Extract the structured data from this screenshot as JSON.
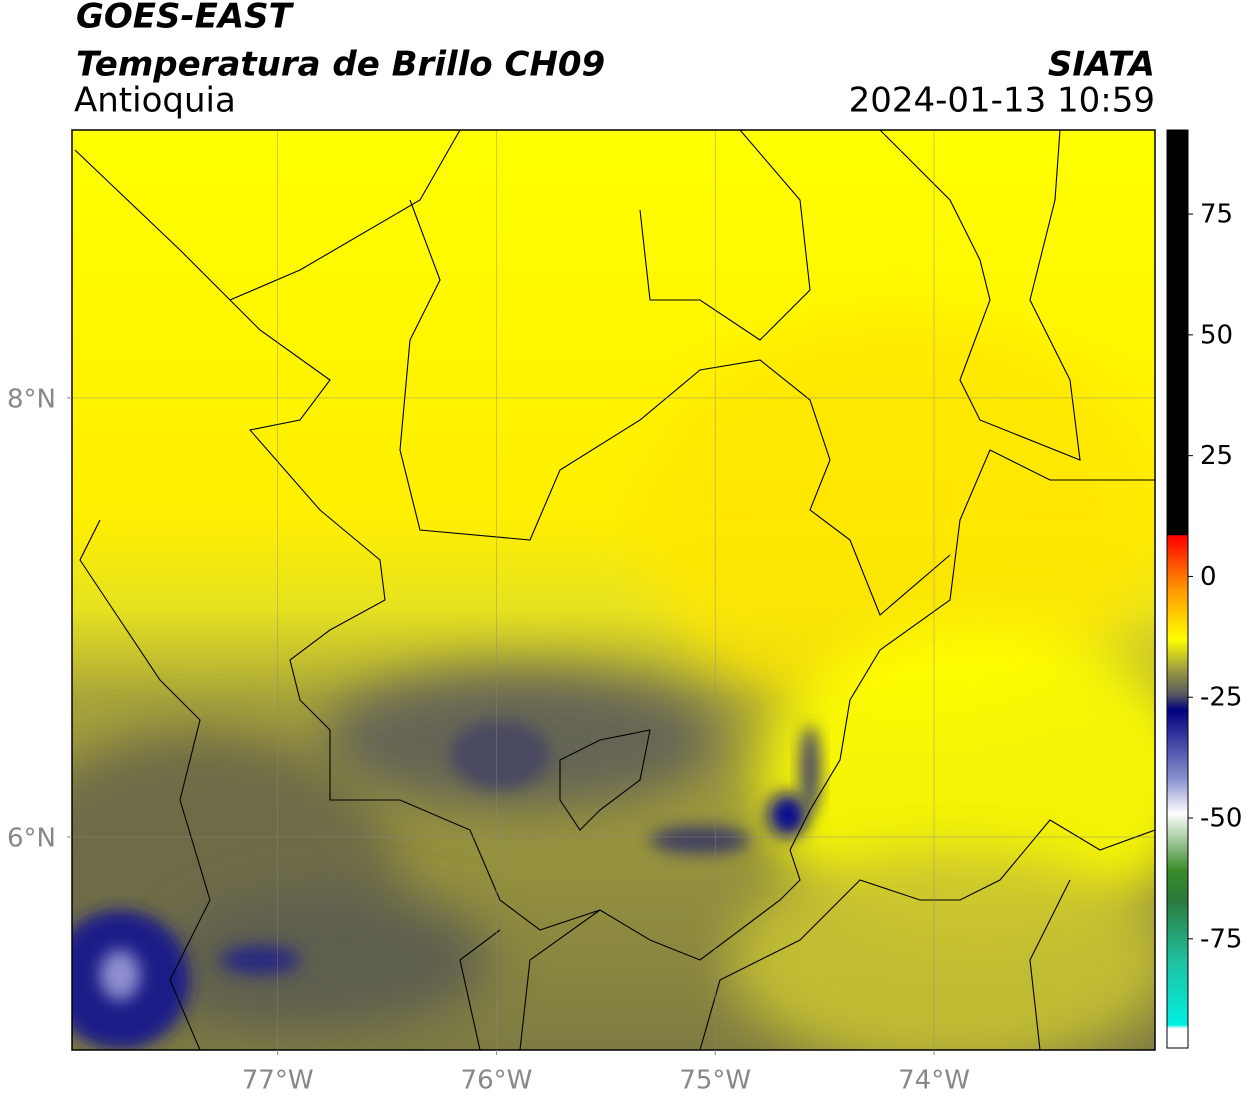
{
  "header": {
    "title": "GOES-EAST",
    "subtitle": "Temperatura de Brillo CH09",
    "region": "Antioquia",
    "source": "SIATA",
    "timestamp": "2024-01-13 10:59"
  },
  "map": {
    "lon_lim": [
      -77.94,
      -72.99
    ],
    "lat_lim": [
      5.03,
      9.22
    ],
    "lon_ticks": [
      {
        "value": -77,
        "label": "77°W"
      },
      {
        "value": -76,
        "label": "76°W"
      },
      {
        "value": -75,
        "label": "75°W"
      },
      {
        "value": -74,
        "label": "74°W"
      }
    ],
    "lat_ticks": [
      {
        "value": 8,
        "label": "8°N"
      },
      {
        "value": 6,
        "label": "6°N"
      }
    ],
    "grid": true
  },
  "colorbar": {
    "lim": [
      -97.6,
      92.4
    ],
    "ticks": [
      75,
      50,
      25,
      0,
      -25,
      -50,
      -75
    ],
    "colormap": [
      {
        "value": 92.4,
        "color": "#000000"
      },
      {
        "value": 8.6,
        "color": "#000000"
      },
      {
        "value": 8.5,
        "color": "#ff0000"
      },
      {
        "value": -2.8,
        "color": "#ff9900"
      },
      {
        "value": -13,
        "color": "#ffff00"
      },
      {
        "value": -19,
        "color": "#a0a040"
      },
      {
        "value": -24.5,
        "color": "#555560"
      },
      {
        "value": -27.6,
        "color": "#000080"
      },
      {
        "value": -42,
        "color": "#8a94d0"
      },
      {
        "value": -49,
        "color": "#ffffff"
      },
      {
        "value": -60.8,
        "color": "#3a8a2a"
      },
      {
        "value": -67,
        "color": "#2a7a3a"
      },
      {
        "value": -79.4,
        "color": "#20c0a0"
      },
      {
        "value": -92.8,
        "color": "#00f0e0"
      },
      {
        "value": -93.5,
        "color": "#ffffff"
      },
      {
        "value": -97.6,
        "color": "#ffffff"
      }
    ]
  }
}
